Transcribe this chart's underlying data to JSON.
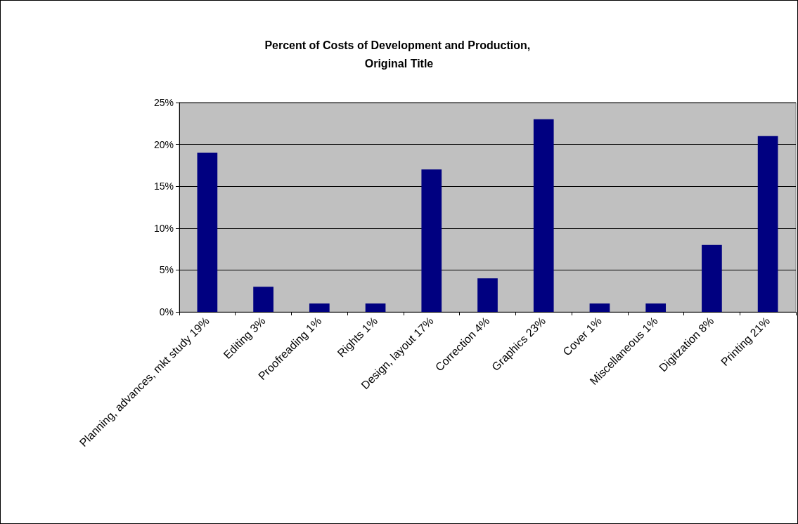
{
  "chart_data": {
    "type": "bar",
    "title": "Percent of Costs of Development and Production, Original Title",
    "categories": [
      "Planning, advances, mkt study 19%",
      "Editing 3%",
      "Proofreading 1%",
      "Rights 1%",
      "Design, layout 17%",
      "Correction 4%",
      "Graphics 23%",
      "Cover 1%",
      "Miscellaneous 1%",
      "Digitzation 8%",
      "Printing 21%"
    ],
    "values": [
      19,
      3,
      1,
      1,
      17,
      4,
      23,
      1,
      1,
      8,
      21
    ],
    "color": "#000080",
    "ylim": [
      0,
      25
    ],
    "yticks": [
      {
        "value": 0,
        "label": "0%"
      },
      {
        "value": 5,
        "label": "5%"
      },
      {
        "value": 10,
        "label": "10%"
      },
      {
        "value": 15,
        "label": "15%"
      },
      {
        "value": 20,
        "label": "20%"
      },
      {
        "value": 25,
        "label": "25%"
      }
    ],
    "grid": "y"
  }
}
